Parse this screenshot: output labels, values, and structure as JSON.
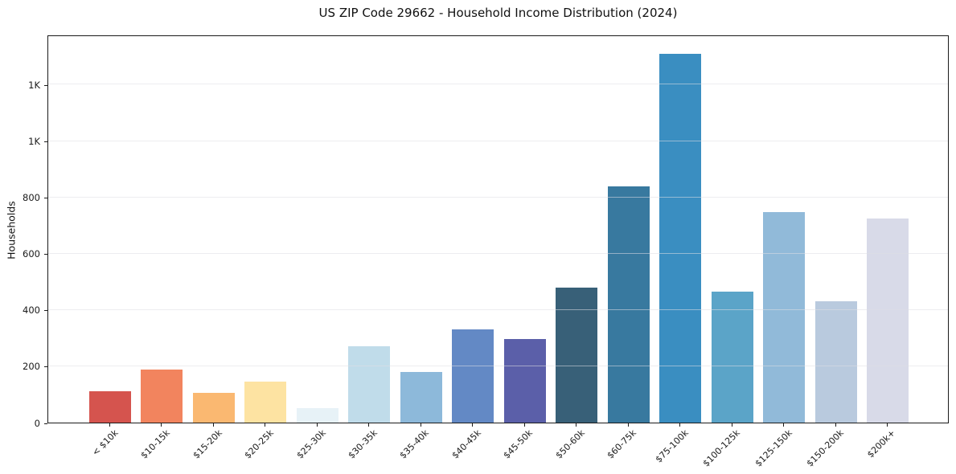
{
  "title": "US ZIP Code 29662 - Household Income Distribution (2024)",
  "chart_data": {
    "type": "bar",
    "title": "US ZIP Code 29662 - Household Income Distribution (2024)",
    "xlabel": "",
    "ylabel": "Households",
    "ylim": [
      0,
      1378
    ],
    "grid": true,
    "legend": "none",
    "yticks": [
      {
        "value": 0,
        "label": "0"
      },
      {
        "value": 200,
        "label": "200"
      },
      {
        "value": 400,
        "label": "400"
      },
      {
        "value": 600,
        "label": "600"
      },
      {
        "value": 800,
        "label": "800"
      },
      {
        "value": 1000,
        "label": "1K"
      },
      {
        "value": 1200,
        "label": "1K"
      }
    ],
    "categories": [
      "< $10k",
      "$10-15k",
      "$15-20k",
      "$20-25k",
      "$25-30k",
      "$30-35k",
      "$35-40k",
      "$40-45k",
      "$45-50k",
      "$50-60k",
      "$60-75k",
      "$75-100k",
      "$100-125k",
      "$125-150k",
      "$150-200k",
      "$200k+"
    ],
    "values": [
      112,
      188,
      105,
      145,
      50,
      270,
      181,
      330,
      297,
      480,
      840,
      1310,
      465,
      748,
      432,
      726
    ],
    "bar_colors": [
      "#d5544e",
      "#f2845e",
      "#fab871",
      "#fde3a2",
      "#e7f2f7",
      "#c0dcea",
      "#8db9da",
      "#6389c5",
      "#5b5fa9",
      "#386078",
      "#38799f",
      "#3a8ec1",
      "#5ba4c8",
      "#91bad9",
      "#b9cade",
      "#d8dae8"
    ]
  }
}
